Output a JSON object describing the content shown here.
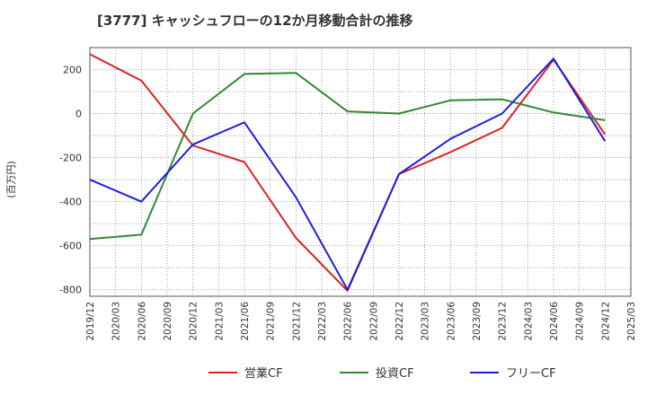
{
  "chart_data": {
    "type": "line",
    "title": "[3777]  キャッシュフローの12か月移動合計の推移",
    "ylabel": "(百万円)",
    "xlabel": "",
    "ylim": [
      -830,
      300
    ],
    "yticks": [
      200,
      0,
      -200,
      -400,
      -600,
      -800
    ],
    "xtick_labels": [
      "2019/12",
      "2020/03",
      "2020/06",
      "2020/09",
      "2020/12",
      "2021/03",
      "2021/06",
      "2021/09",
      "2021/12",
      "2022/03",
      "2022/06",
      "2022/09",
      "2022/12",
      "2023/03",
      "2023/06",
      "2023/09",
      "2023/12",
      "2024/03",
      "2024/06",
      "2024/09",
      "2024/12",
      "2025/03"
    ],
    "grid": true,
    "legend_position": "bottom",
    "series": [
      {
        "name": "営業CF",
        "color": "#dd2222",
        "x": [
          "2019/12",
          "2020/06",
          "2020/12",
          "2021/06",
          "2021/12",
          "2022/06",
          "2022/12",
          "2023/06",
          "2023/12",
          "2024/06",
          "2024/12"
        ],
        "values": [
          270,
          150,
          -145,
          -220,
          -565,
          -805,
          -275,
          -175,
          -65,
          245,
          -95
        ]
      },
      {
        "name": "投資CF",
        "color": "#338833",
        "x": [
          "2019/12",
          "2020/06",
          "2020/12",
          "2021/06",
          "2021/12",
          "2022/06",
          "2022/12",
          "2023/06",
          "2023/12",
          "2024/06",
          "2024/12"
        ],
        "values": [
          -570,
          -550,
          0,
          180,
          185,
          10,
          0,
          60,
          65,
          5,
          -30
        ]
      },
      {
        "name": "フリーCF",
        "color": "#1f1fdd",
        "x": [
          "2019/12",
          "2020/06",
          "2020/12",
          "2021/06",
          "2021/12",
          "2022/06",
          "2022/12",
          "2023/06",
          "2023/12",
          "2024/06",
          "2024/12"
        ],
        "values": [
          -300,
          -400,
          -140,
          -40,
          -380,
          -800,
          -275,
          -115,
          0,
          250,
          -125
        ]
      }
    ]
  }
}
